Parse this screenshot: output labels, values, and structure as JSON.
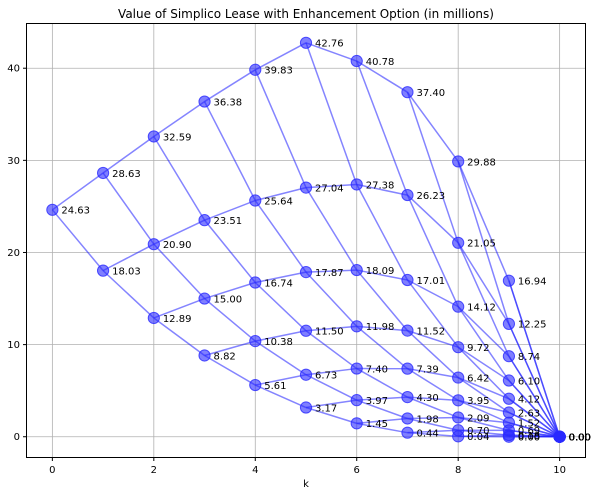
{
  "chart_data": {
    "type": "scatter",
    "title": "Value of Simplico Lease with Enhancement Option (in millions)",
    "xlabel": "k",
    "ylabel": "",
    "xlim": [
      -0.5,
      10.5
    ],
    "ylim": [
      -2.2,
      44.8
    ],
    "xticks": [
      0,
      2,
      4,
      6,
      8,
      10
    ],
    "yticks": [
      0,
      10,
      20,
      30,
      40
    ],
    "grid": true,
    "colors": {
      "marker": "#2a2aff",
      "line": "#1f1fff"
    },
    "lattice": [
      [
        {
          "y": 24.63,
          "label": "24.63"
        }
      ],
      [
        {
          "y": 28.63,
          "label": "28.63"
        },
        {
          "y": 18.03,
          "label": "18.03"
        }
      ],
      [
        {
          "y": 32.59,
          "label": "32.59"
        },
        {
          "y": 20.9,
          "label": "20.90"
        },
        {
          "y": 12.89,
          "label": "12.89"
        }
      ],
      [
        {
          "y": 36.38,
          "label": "36.38"
        },
        {
          "y": 23.51,
          "label": "23.51"
        },
        {
          "y": 15.0,
          "label": "15.00"
        },
        {
          "y": 8.82,
          "label": "8.82"
        }
      ],
      [
        {
          "y": 39.83,
          "label": "39.83"
        },
        {
          "y": 25.64,
          "label": "25.64"
        },
        {
          "y": 16.74,
          "label": "16.74"
        },
        {
          "y": 10.38,
          "label": "10.38"
        },
        {
          "y": 5.61,
          "label": "5.61"
        }
      ],
      [
        {
          "y": 42.76,
          "label": "42.76"
        },
        {
          "y": 27.04,
          "label": "27.04"
        },
        {
          "y": 17.87,
          "label": "17.87"
        },
        {
          "y": 11.5,
          "label": "11.50"
        },
        {
          "y": 6.73,
          "label": "6.73"
        },
        {
          "y": 3.17,
          "label": "3.17"
        }
      ],
      [
        {
          "y": 40.78,
          "label": "40.78"
        },
        {
          "y": 27.38,
          "label": "27.38"
        },
        {
          "y": 18.09,
          "label": "18.09"
        },
        {
          "y": 11.98,
          "label": "11.98"
        },
        {
          "y": 7.4,
          "label": "7.40"
        },
        {
          "y": 3.97,
          "label": "3.97"
        },
        {
          "y": 1.45,
          "label": "1.45"
        }
      ],
      [
        {
          "y": 37.4,
          "label": "37.40"
        },
        {
          "y": 26.23,
          "label": "26.23"
        },
        {
          "y": 17.01,
          "label": "17.01"
        },
        {
          "y": 11.52,
          "label": "11.52"
        },
        {
          "y": 7.39,
          "label": "7.39"
        },
        {
          "y": 4.3,
          "label": "4.30"
        },
        {
          "y": 1.98,
          "label": "1.98"
        },
        {
          "y": 0.44,
          "label": "0.44"
        }
      ],
      [
        {
          "y": 29.88,
          "label": "29.88"
        },
        {
          "y": 21.05,
          "label": "21.05"
        },
        {
          "y": 14.12,
          "label": "14.12"
        },
        {
          "y": 9.72,
          "label": "9.72"
        },
        {
          "y": 6.42,
          "label": "6.42"
        },
        {
          "y": 3.95,
          "label": "3.95"
        },
        {
          "y": 2.09,
          "label": "2.09"
        },
        {
          "y": 0.7,
          "label": "0.70"
        },
        {
          "y": 0.04,
          "label": "0.04"
        }
      ],
      [
        {
          "y": 16.94,
          "label": "16.94"
        },
        {
          "y": 12.25,
          "label": "12.25"
        },
        {
          "y": 8.74,
          "label": "8.74"
        },
        {
          "y": 6.1,
          "label": "6.10"
        },
        {
          "y": 4.12,
          "label": "4.12"
        },
        {
          "y": 2.63,
          "label": "2.63"
        },
        {
          "y": 1.52,
          "label": "1.52"
        },
        {
          "y": 0.69,
          "label": "0.69"
        },
        {
          "y": 0.18,
          "label": "0.18"
        },
        {
          "y": 0.0,
          "label": "0.00"
        }
      ],
      [
        {
          "y": 0.0,
          "label": "0.00"
        },
        {
          "y": 0.0,
          "label": "0.00"
        },
        {
          "y": 0.0,
          "label": "0.00"
        },
        {
          "y": 0.0,
          "label": "0.00"
        },
        {
          "y": 0.0,
          "label": "0.00"
        },
        {
          "y": 0.0,
          "label": "0.00"
        },
        {
          "y": 0.0,
          "label": "0.00"
        },
        {
          "y": 0.0,
          "label": "0.00"
        },
        {
          "y": 0.0,
          "label": "0.00"
        },
        {
          "y": 0.0,
          "label": "0.00"
        },
        {
          "y": 0.0,
          "label": "0.00"
        }
      ]
    ]
  }
}
